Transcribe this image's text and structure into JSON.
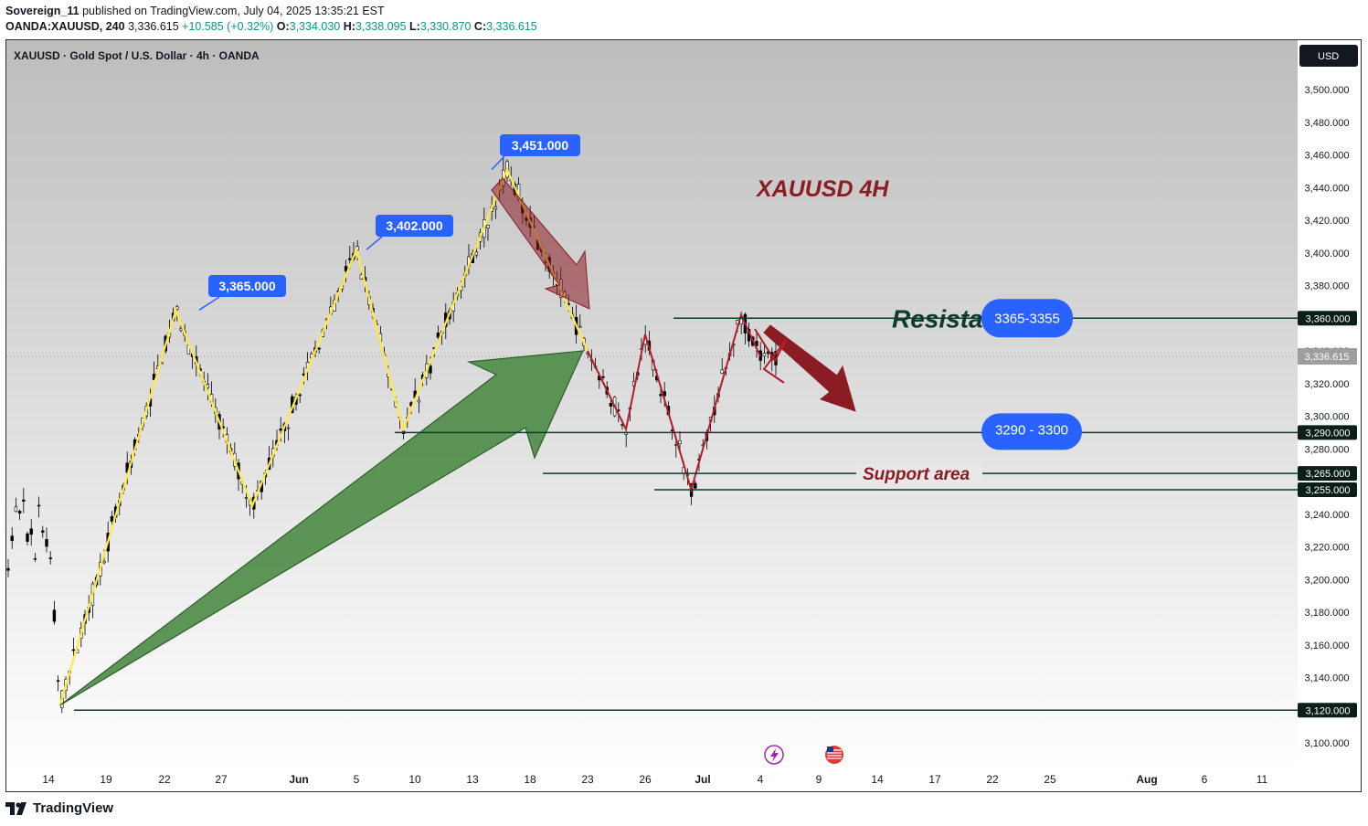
{
  "header": {
    "author": "Sovereign_11",
    "published_text": "published on TradingView.com, July 04, 2025 13:35:21 EST",
    "symbol_line": "OANDA:XAUUSD, 240",
    "price": "3,336.615",
    "change": "+10.585 (+0.32%)",
    "o_label": "O:",
    "o": "3,334.030",
    "h_label": "H:",
    "h": "3,338.095",
    "l_label": "L:",
    "l": "3,330.870",
    "c_label": "C:",
    "c": "3,336.615"
  },
  "chart_data": {
    "type": "candlestick",
    "title": "XAUUSD · Gold Spot / U.S. Dollar · 4h · OANDA",
    "annotation_title": "XAUUSD 4H",
    "currency": "USD",
    "ylim": [
      3090,
      3512
    ],
    "yticks": [
      "3,100.000",
      "3,140.000",
      "3,160.000",
      "3,180.000",
      "3,200.000",
      "3,220.000",
      "3,240.000",
      "3,280.000",
      "3,300.000",
      "3,320.000",
      "3,340.000",
      "3,380.000",
      "3,400.000",
      "3,420.000",
      "3,440.000",
      "3,460.000",
      "3,480.000",
      "3,500.000"
    ],
    "ytick_values": [
      3100,
      3140,
      3160,
      3180,
      3200,
      3220,
      3240,
      3280,
      3300,
      3320,
      3340,
      3380,
      3400,
      3420,
      3440,
      3460,
      3480,
      3500
    ],
    "x_tick_labels": [
      "14",
      "19",
      "22",
      "27",
      "Jun",
      "5",
      "10",
      "13",
      "18",
      "23",
      "26",
      "Jul",
      "4",
      "9",
      "14",
      "17",
      "22",
      "25",
      "Aug",
      "6",
      "11"
    ],
    "last_price": "3,336.615",
    "last_price_value": 3336.615,
    "price_path": [
      {
        "x": "May 14",
        "y": 3230
      },
      {
        "x": "May 15",
        "y": 3123
      },
      {
        "x": "May 23",
        "y": 3365
      },
      {
        "x": "May 29",
        "y": 3245
      },
      {
        "x": "Jun 5",
        "y": 3402
      },
      {
        "x": "Jun 9",
        "y": 3292
      },
      {
        "x": "Jun 16",
        "y": 3451
      },
      {
        "x": "Jun 23",
        "y": 3340
      },
      {
        "x": "Jun 25",
        "y": 3292
      },
      {
        "x": "Jun 26",
        "y": 3350
      },
      {
        "x": "Jun 30",
        "y": 3255
      },
      {
        "x": "Jul 3",
        "y": 3362
      },
      {
        "x": "Jul 4",
        "y": 3336.6
      }
    ],
    "peak_labels": [
      {
        "text": "3,365.000",
        "value": 3365
      },
      {
        "text": "3,402.000",
        "value": 3402
      },
      {
        "text": "3,451.000",
        "value": 3451
      }
    ],
    "levels": [
      {
        "text": "3,360.000",
        "value": 3360,
        "zone_label": "Resistance",
        "zone_range": "3365-3355"
      },
      {
        "text": "3,290.000",
        "value": 3290,
        "zone_range": "3290 - 3300"
      },
      {
        "text": "3,265.000",
        "value": 3265,
        "zone_label": "Support area"
      },
      {
        "text": "3,255.000",
        "value": 3255
      },
      {
        "text": "3,120.000",
        "value": 3120
      }
    ],
    "colors": {
      "bg_top": "#bdbdbd",
      "bg_bottom": "#ffffff",
      "zigzag": "#ffeb3b",
      "bear_arrow": "#8b1c24",
      "bull_arrow": "#4b8b45",
      "label_blue": "#2962ff",
      "level_line": "#0d3b2e",
      "candle": "#000000"
    }
  },
  "footer": {
    "brand": "TradingView"
  }
}
